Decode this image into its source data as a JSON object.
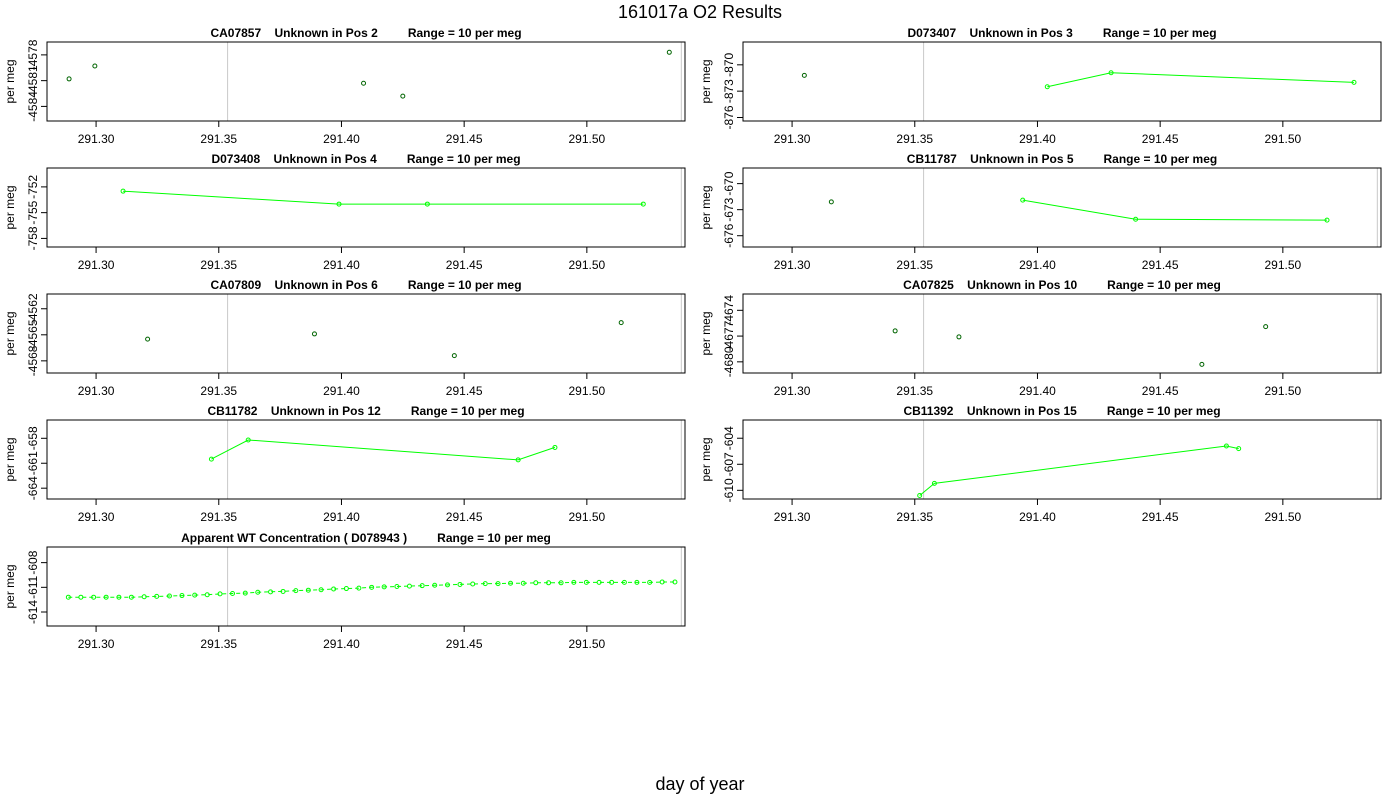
{
  "page_title": "161017a  O2 Results",
  "x_axis_label": "day of year",
  "colors": {
    "line": "#00ff00",
    "point_dark": "#006400",
    "vline": "#c8c8c8",
    "frame": "#000000"
  },
  "chart_data": [
    {
      "type": "scatter",
      "title": "CA07857    Unknown in Pos 2         Range = 10 per meg",
      "ylabel": "per meg",
      "xlim": [
        291.28,
        291.54
      ],
      "ylim": [
        -4585.7,
        -4576.5
      ],
      "xticks": [
        291.3,
        291.35,
        291.4,
        291.45,
        291.5
      ],
      "xtick_labels": [
        "291.30",
        "291.35",
        "291.40",
        "291.45",
        "291.50"
      ],
      "yticks": [
        -4578,
        -4581,
        -4584
      ],
      "ytick_labels": [
        "-4578",
        "-4581",
        "-4584"
      ],
      "vlines": [
        291.3536,
        291.5385
      ],
      "connected": false,
      "x": [
        291.289,
        291.2995,
        291.409,
        291.425,
        291.5336
      ],
      "y": [
        -4580.8,
        -4579.3,
        -4581.3,
        -4582.8,
        -4577.7
      ]
    },
    {
      "type": "line",
      "title": "D073407    Unknown in Pos 3         Range = 10 per meg",
      "ylabel": "per meg",
      "xlim": [
        291.28,
        291.54
      ],
      "ylim": [
        -876.4,
        -867.4
      ],
      "xticks": [
        291.3,
        291.35,
        291.4,
        291.45,
        291.5
      ],
      "xtick_labels": [
        "291.30",
        "291.35",
        "291.40",
        "291.45",
        "291.50"
      ],
      "yticks": [
        -870,
        -873,
        -876
      ],
      "ytick_labels": [
        "-870",
        "-873",
        "-876"
      ],
      "vlines": [
        291.3536
      ],
      "isolated": {
        "x": [
          291.305
        ],
        "y": [
          -871.2
        ]
      },
      "x": [
        291.404,
        291.43,
        291.529
      ],
      "y": [
        -872.5,
        -870.9,
        -872.0
      ]
    },
    {
      "type": "line",
      "title": "D073408    Unknown in Pos 4         Range = 10 per meg",
      "ylabel": "per meg",
      "xlim": [
        291.28,
        291.54
      ],
      "ylim": [
        -759.0,
        -749.8
      ],
      "xticks": [
        291.3,
        291.35,
        291.4,
        291.45,
        291.5
      ],
      "xtick_labels": [
        "291.30",
        "291.35",
        "291.40",
        "291.45",
        "291.50"
      ],
      "yticks": [
        -752,
        -755,
        -758
      ],
      "ytick_labels": [
        "-752",
        "-755",
        "-758"
      ],
      "vlines": [
        291.5385
      ],
      "x": [
        291.311,
        291.399,
        291.435,
        291.523
      ],
      "y": [
        -752.5,
        -754.0,
        -754.0,
        -754.0
      ]
    },
    {
      "type": "line",
      "title": "CB11787    Unknown in Pos 5         Range = 10 per meg",
      "ylabel": "per meg",
      "xlim": [
        291.28,
        291.54
      ],
      "ylim": [
        -677.3,
        -668.2
      ],
      "xticks": [
        291.3,
        291.35,
        291.4,
        291.45,
        291.5
      ],
      "xtick_labels": [
        "291.30",
        "291.35",
        "291.40",
        "291.45",
        "291.50"
      ],
      "yticks": [
        -670,
        -673,
        -676
      ],
      "ytick_labels": [
        "-670",
        "-673",
        "-676"
      ],
      "vlines": [
        291.3536,
        291.5385
      ],
      "isolated": {
        "x": [
          291.316
        ],
        "y": [
          -672.1
        ]
      },
      "x": [
        291.394,
        291.44,
        291.518
      ],
      "y": [
        -671.9,
        -674.1,
        -674.2
      ]
    },
    {
      "type": "scatter",
      "title": "CA07809    Unknown in Pos 6         Range = 10 per meg",
      "ylabel": "per meg",
      "xlim": [
        291.28,
        291.54
      ],
      "ylim": [
        -4569.4,
        -4560.3
      ],
      "xticks": [
        291.3,
        291.35,
        291.4,
        291.45,
        291.5
      ],
      "xtick_labels": [
        "291.30",
        "291.35",
        "291.40",
        "291.45",
        "291.50"
      ],
      "yticks": [
        -4562,
        -4565,
        -4568
      ],
      "ytick_labels": [
        "-4562",
        "-4565",
        "-4568"
      ],
      "vlines": [
        291.3536,
        291.5385
      ],
      "connected": false,
      "x": [
        291.321,
        291.389,
        291.446,
        291.514
      ],
      "y": [
        -4565.5,
        -4564.9,
        -4567.4,
        -4563.6
      ]
    },
    {
      "type": "scatter",
      "title": "CA07825    Unknown in Pos 10         Range = 10 per meg",
      "ylabel": "per meg",
      "xlim": [
        291.28,
        291.54
      ],
      "ylim": [
        -4681.3,
        -4672.1
      ],
      "xticks": [
        291.3,
        291.35,
        291.4,
        291.45,
        291.5
      ],
      "xtick_labels": [
        "291.30",
        "291.35",
        "291.40",
        "291.45",
        "291.50"
      ],
      "yticks": [
        -4674,
        -4677,
        -4680
      ],
      "ytick_labels": [
        "-4674",
        "-4677",
        "-4680"
      ],
      "vlines": [
        291.3536,
        291.5385
      ],
      "connected": false,
      "x": [
        291.342,
        291.368,
        291.467,
        291.493
      ],
      "y": [
        -4676.4,
        -4677.1,
        -4680.3,
        -4675.9
      ]
    },
    {
      "type": "line",
      "title": "CB11782    Unknown in Pos 12         Range = 10 per meg",
      "ylabel": "per meg",
      "xlim": [
        291.28,
        291.54
      ],
      "ylim": [
        -665.3,
        -655.8
      ],
      "xticks": [
        291.3,
        291.35,
        291.4,
        291.45,
        291.5
      ],
      "xtick_labels": [
        "291.30",
        "291.35",
        "291.40",
        "291.45",
        "291.50"
      ],
      "yticks": [
        -658,
        -661,
        -664
      ],
      "ytick_labels": [
        "-658",
        "-661",
        "-664"
      ],
      "vlines": [
        291.3536,
        291.5385
      ],
      "x": [
        291.347,
        291.362,
        291.472,
        291.487
      ],
      "y": [
        -660.5,
        -658.2,
        -660.6,
        -659.1
      ]
    },
    {
      "type": "line",
      "title": "CB11392    Unknown in Pos 15         Range = 10 per meg",
      "ylabel": "per meg",
      "xlim": [
        291.28,
        291.54
      ],
      "ylim": [
        -611.0,
        -601.9
      ],
      "xticks": [
        291.3,
        291.35,
        291.4,
        291.45,
        291.5
      ],
      "xtick_labels": [
        "291.30",
        "291.35",
        "291.40",
        "291.45",
        "291.50"
      ],
      "yticks": [
        -604,
        -607,
        -610
      ],
      "ytick_labels": [
        "-604",
        "-607",
        "-610"
      ],
      "vlines": [
        291.3536,
        291.5385
      ],
      "x": [
        291.352,
        291.358,
        291.477,
        291.482
      ],
      "y": [
        -610.6,
        -609.2,
        -604.9,
        -605.2
      ]
    },
    {
      "type": "line",
      "title": "Apparent WT Concentration ( D078943 )         Range = 10 per meg",
      "ylabel": "per meg",
      "xlim": [
        291.28,
        291.54
      ],
      "ylim": [
        -615.7,
        -606.1
      ],
      "xticks": [
        291.3,
        291.35,
        291.4,
        291.45,
        291.5
      ],
      "xtick_labels": [
        "291.30",
        "291.35",
        "291.40",
        "291.45",
        "291.50"
      ],
      "yticks": [
        -608,
        -611,
        -614
      ],
      "ytick_labels": [
        "-608",
        "-611",
        "-614"
      ],
      "vlines": [
        291.3536,
        291.5385
      ],
      "dashed": true,
      "x": [
        291.2887,
        291.2938,
        291.299,
        291.3041,
        291.3093,
        291.3144,
        291.3196,
        291.3247,
        291.3299,
        291.335,
        291.3402,
        291.3453,
        291.3505,
        291.3556,
        291.3608,
        291.3659,
        291.3711,
        291.3762,
        291.3814,
        291.3865,
        291.3917,
        291.3968,
        291.402,
        291.4071,
        291.4123,
        291.4174,
        291.4226,
        291.4277,
        291.4329,
        291.438,
        291.4432,
        291.4483,
        291.4535,
        291.4586,
        291.4638,
        291.4689,
        291.4741,
        291.4792,
        291.4844,
        291.4895,
        291.4947,
        291.4998,
        291.505,
        291.5101,
        291.5153,
        291.5204,
        291.5256,
        291.5307,
        291.5359
      ],
      "y": [
        -612.2,
        -612.2,
        -612.2,
        -612.2,
        -612.2,
        -612.2,
        -612.15,
        -612.1,
        -612.05,
        -612.0,
        -611.95,
        -611.9,
        -611.8,
        -611.75,
        -611.7,
        -611.6,
        -611.55,
        -611.5,
        -611.4,
        -611.35,
        -611.3,
        -611.2,
        -611.15,
        -611.1,
        -611.0,
        -610.95,
        -610.9,
        -610.85,
        -610.8,
        -610.75,
        -610.7,
        -610.65,
        -610.6,
        -610.55,
        -610.55,
        -610.5,
        -610.5,
        -610.45,
        -610.45,
        -610.45,
        -610.4,
        -610.4,
        -610.4,
        -610.4,
        -610.4,
        -610.4,
        -610.4,
        -610.35,
        -610.35
      ]
    }
  ]
}
